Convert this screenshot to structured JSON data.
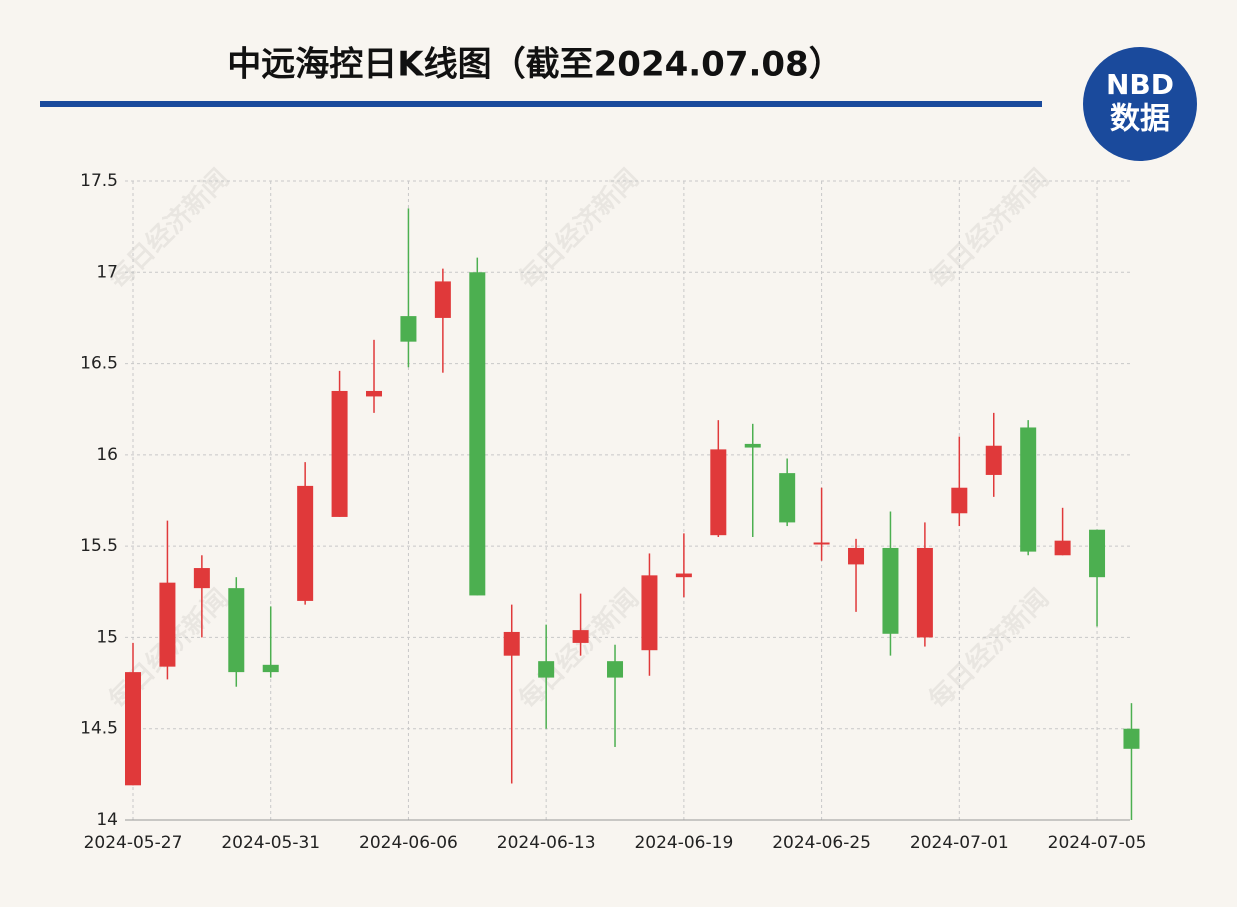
{
  "chart_data": {
    "type": "candlestick",
    "title": "中远海控日K线图（截至2024.07.08）",
    "logo": {
      "top": "NBD",
      "bottom": "数据"
    },
    "watermark": "每日经济新闻",
    "categories": [
      "2024-05-27",
      null,
      null,
      null,
      "2024-05-31",
      null,
      null,
      null,
      "2024-06-06",
      null,
      null,
      null,
      "2024-06-13",
      null,
      null,
      null,
      "2024-06-19",
      null,
      null,
      null,
      "2024-06-25",
      null,
      null,
      null,
      "2024-07-01",
      null,
      null,
      null,
      "2024-07-05",
      null
    ],
    "open": [
      14.19,
      14.84,
      15.27,
      15.27,
      14.85,
      15.2,
      15.66,
      16.32,
      16.76,
      16.75,
      17.0,
      14.9,
      14.87,
      14.97,
      14.87,
      14.93,
      15.33,
      15.56,
      16.06,
      15.9,
      15.51,
      15.4,
      15.49,
      15.0,
      15.68,
      15.89,
      16.15,
      15.45,
      15.59,
      14.5
    ],
    "high": [
      14.97,
      15.64,
      15.45,
      15.33,
      15.17,
      15.96,
      16.46,
      16.63,
      17.35,
      17.02,
      17.08,
      15.18,
      15.07,
      15.24,
      14.96,
      15.46,
      15.57,
      16.19,
      16.17,
      15.98,
      15.82,
      15.54,
      15.69,
      15.63,
      16.1,
      16.23,
      16.19,
      15.71,
      15.59,
      14.64
    ],
    "low": [
      14.19,
      14.77,
      15.0,
      14.73,
      14.78,
      15.18,
      15.66,
      16.23,
      16.48,
      16.45,
      15.23,
      14.2,
      14.5,
      14.9,
      14.4,
      14.79,
      15.22,
      15.55,
      15.55,
      15.61,
      15.42,
      15.14,
      14.9,
      14.95,
      15.61,
      15.77,
      15.45,
      15.45,
      15.06,
      14.0
    ],
    "close": [
      14.81,
      15.3,
      15.38,
      14.81,
      14.81,
      15.83,
      16.35,
      16.35,
      16.62,
      16.95,
      15.23,
      15.03,
      14.78,
      15.04,
      14.78,
      15.34,
      15.35,
      16.03,
      16.04,
      15.63,
      15.52,
      15.49,
      15.02,
      15.49,
      15.82,
      16.05,
      15.47,
      15.53,
      15.33,
      14.39
    ],
    "up_color": "#e0393a",
    "down_color": "#4caf50",
    "ylim": [
      14,
      17.5
    ],
    "yticks": [
      14,
      {
        "value": 14.5,
        "label": "14.5"
      },
      15,
      {
        "value": 15.5,
        "label": "15.5"
      },
      16,
      {
        "value": 16.5,
        "label": "16.5"
      },
      17,
      {
        "value": 17.5,
        "label": "17.5"
      }
    ],
    "grid": true
  }
}
